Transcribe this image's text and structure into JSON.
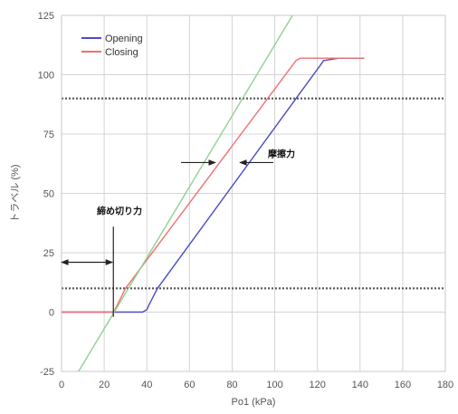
{
  "chart_data": {
    "type": "line",
    "xlabel": "Po1 (kPa)",
    "ylabel": "トラベル (%)",
    "xlim": [
      0,
      180
    ],
    "ylim": [
      -25,
      125
    ],
    "xticks": [
      0,
      20,
      40,
      60,
      80,
      100,
      120,
      140,
      160,
      180
    ],
    "yticks": [
      -25,
      0,
      25,
      50,
      75,
      100,
      125
    ],
    "grid": true,
    "legend_position": "top-left",
    "series": [
      {
        "name": "Opening",
        "color": "#4b4bc8",
        "x": [
          0,
          25,
          38,
          40,
          41,
          45,
          123,
          130,
          142
        ],
        "y": [
          0,
          0,
          0,
          1,
          3,
          10,
          106,
          107,
          107
        ]
      },
      {
        "name": "Closing",
        "color": "#f07070",
        "x": [
          0,
          24,
          24.5,
          30,
          110,
          112,
          142
        ],
        "y": [
          0,
          0,
          0,
          10,
          106,
          107,
          107
        ]
      },
      {
        "name": "",
        "color": "#90d090",
        "x": [
          8,
          115
        ],
        "y": [
          -25,
          135
        ]
      }
    ],
    "reference_lines": [
      {
        "y": 90,
        "style": "dotted",
        "color": "#555555"
      },
      {
        "y": 10,
        "style": "dotted",
        "color": "#555555"
      }
    ],
    "annotations": [
      {
        "text": "摩擦力",
        "at": [
          87,
          65
        ]
      },
      {
        "text": "締め切り力",
        "at": [
          12,
          42
        ]
      }
    ]
  }
}
